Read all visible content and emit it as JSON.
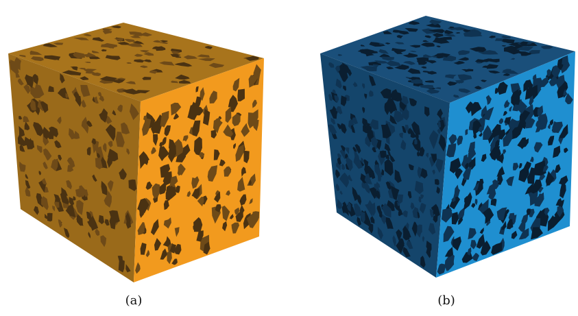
{
  "figure": {
    "panels": [
      {
        "id": "a",
        "caption": "(a)",
        "subject": "solid-grain-cube-render",
        "colors": {
          "top": "#a8741c",
          "left": "#9a6a1a",
          "right": "#f29a1e",
          "pore_dark": "#4a3212",
          "pore_mid": "#6e4a18"
        }
      },
      {
        "id": "b",
        "caption": "(b)",
        "subject": "pore-space-cube-render",
        "colors": {
          "top": "#1a4f7a",
          "left": "#14456b",
          "right": "#1f8fd0",
          "pore_dark": "#0a1e30",
          "pore_mid": "#0f3352"
        }
      }
    ]
  }
}
